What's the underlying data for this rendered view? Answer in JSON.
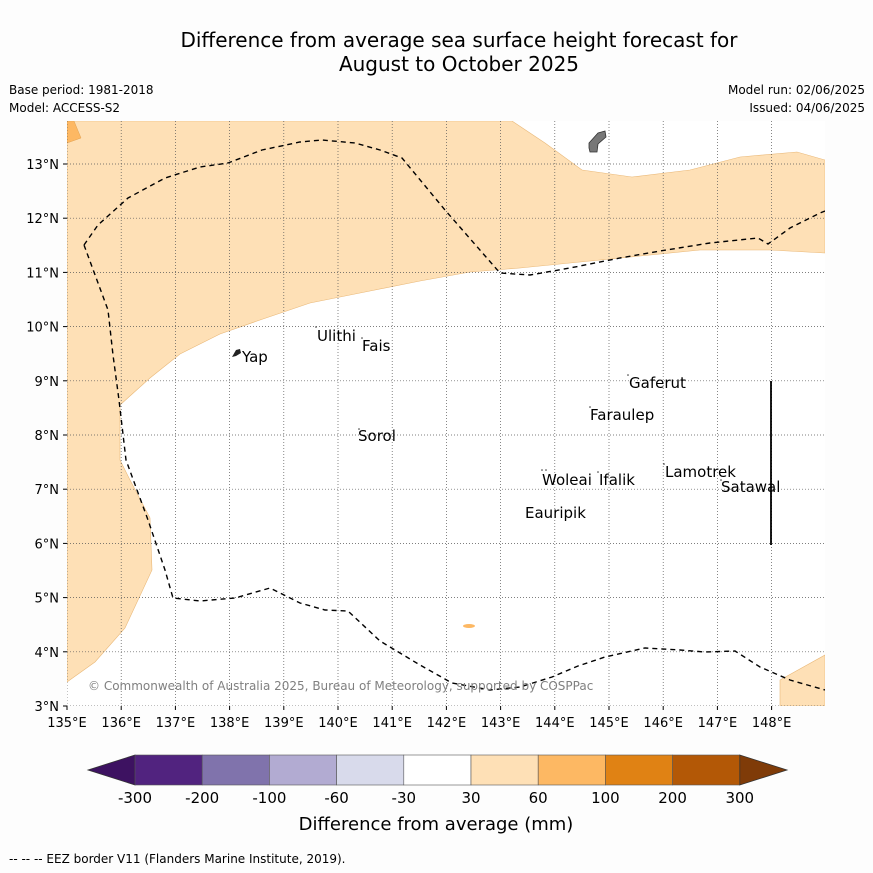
{
  "title_line1": "Difference from average sea surface height forecast for",
  "title_line2": "August to October 2025",
  "meta_left": {
    "base_period": "Base period: 1981-2018",
    "model": "Model: ACCESS-S2"
  },
  "meta_right": {
    "model_run": "Model run: 02/06/2025",
    "issued": "Issued: 04/06/2025"
  },
  "map": {
    "lon_ticks": [
      "135°E",
      "136°E",
      "137°E",
      "138°E",
      "139°E",
      "140°E",
      "141°E",
      "142°E",
      "143°E",
      "144°E",
      "145°E",
      "146°E",
      "147°E",
      "148°E"
    ],
    "lat_ticks": [
      "13°N",
      "12°N",
      "11°N",
      "10°N",
      "9°N",
      "8°N",
      "7°N",
      "6°N",
      "5°N",
      "4°N",
      "3°N"
    ],
    "places": [
      "Yap",
      "Ulithi",
      "Fais",
      "Sorol",
      "Gaferut",
      "Faraulep",
      "Woleai",
      "Ifalik",
      "Lamotrek",
      "Satawal",
      "Eauripik"
    ],
    "copyright": "© Commonwealth of Australia 2025, Bureau of Meteorology, supported by COSPPac"
  },
  "colorbar": {
    "colors": [
      "#3d1261",
      "#51237f",
      "#8073ac",
      "#b2abd2",
      "#d8daeb",
      "#ffffff",
      "#fee0b6",
      "#fdb863",
      "#e08214",
      "#b35806",
      "#7f3b08"
    ],
    "ticks": [
      "-300",
      "-200",
      "-100",
      "-60",
      "-30",
      "30",
      "60",
      "100",
      "200",
      "300"
    ],
    "label": "Difference from average (mm)"
  },
  "footer": "--  --  -- EEZ border V11 (Flanders Marine Institute, 2019)."
}
